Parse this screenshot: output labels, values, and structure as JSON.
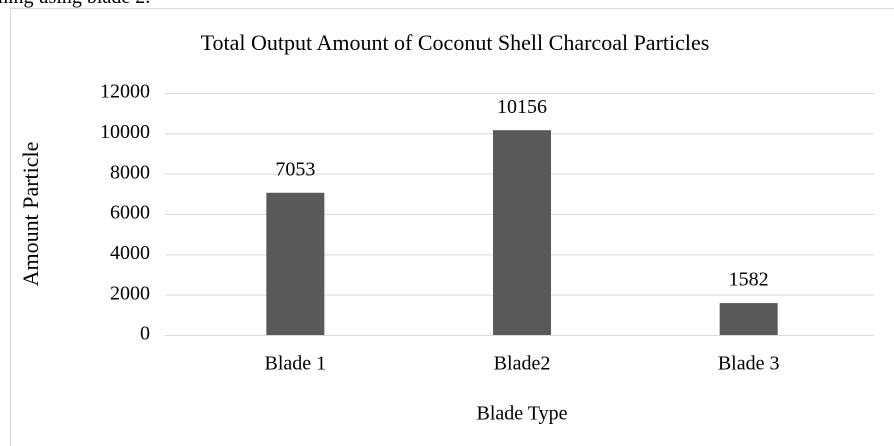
{
  "caption_fragment": "hing using blade 2.",
  "chart_data": {
    "type": "bar",
    "title": "Total Output Amount of Coconut Shell Charcoal Particles",
    "categories": [
      "Blade 1",
      "Blade2",
      "Blade 3"
    ],
    "values": [
      7053,
      10156,
      1582
    ],
    "color": "#595959",
    "x_label": "Blade Type",
    "y_label": "Amount Particle",
    "ylim": [
      0,
      12000
    ],
    "yticks": [
      0,
      2000,
      4000,
      6000,
      8000,
      10000,
      12000
    ],
    "grid": true
  }
}
